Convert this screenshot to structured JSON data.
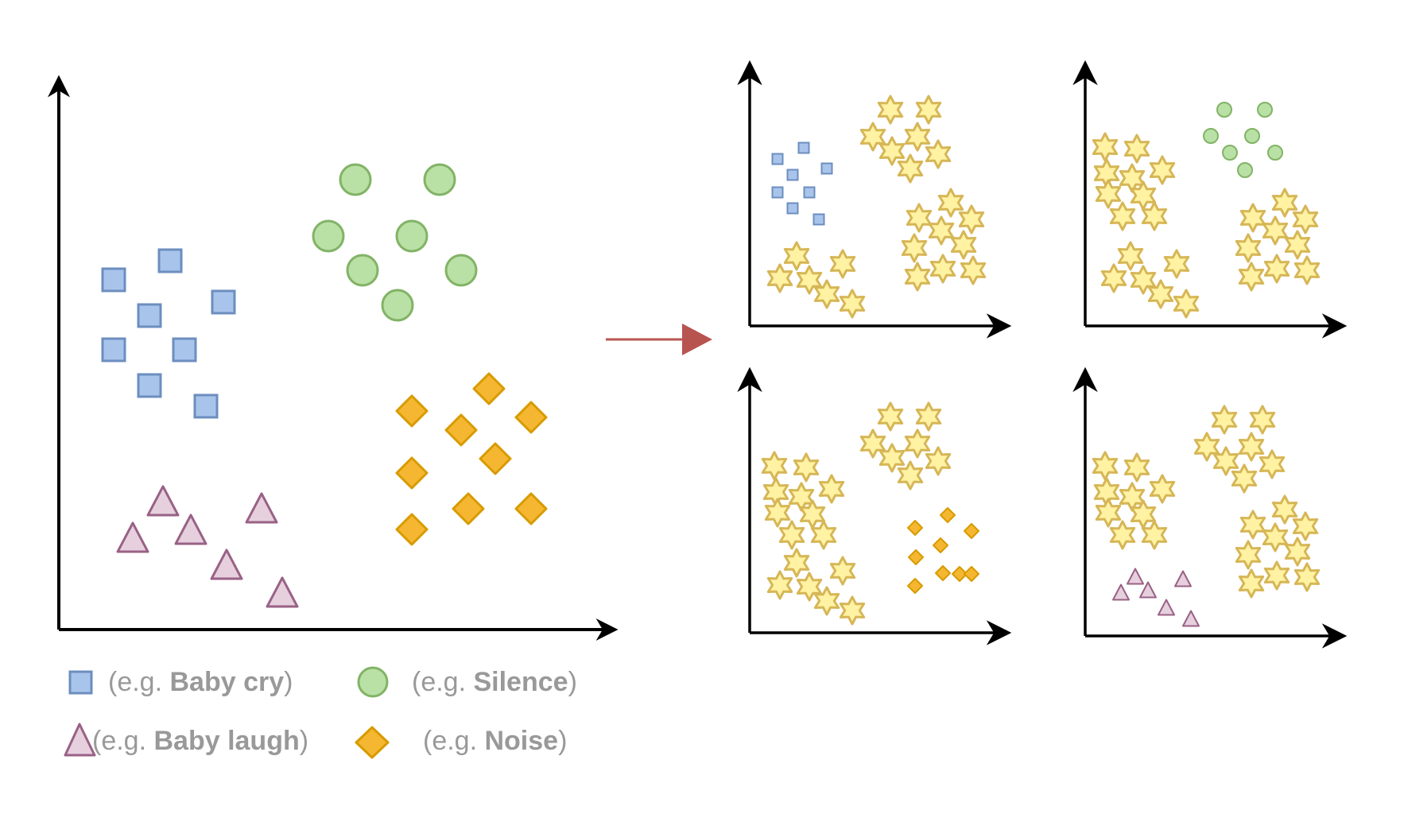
{
  "legend": [
    {
      "key": "square",
      "prefix": "(e.g. ",
      "name": "Baby cry",
      "suffix": ")"
    },
    {
      "key": "circle",
      "prefix": "(e.g. ",
      "name": "Silence",
      "suffix": ")"
    },
    {
      "key": "triangle",
      "prefix": "(e.g. ",
      "name": "Baby laugh",
      "suffix": ")"
    },
    {
      "key": "diamond",
      "prefix": "(e.g. ",
      "name": "Noise",
      "suffix": ")"
    }
  ],
  "colors": {
    "square": {
      "fill": "#A9C4EB",
      "stroke": "#6C8EBF"
    },
    "circle": {
      "fill": "#B9E0A5",
      "stroke": "#82B366"
    },
    "triangle": {
      "fill": "#E6D0DE",
      "stroke": "#996185"
    },
    "diamond": {
      "fill": "#F5B731",
      "stroke": "#D79B00"
    },
    "star": {
      "fill": "#FFF2A3",
      "stroke": "#D6B656"
    },
    "axis": "#000000",
    "arrow": "#B85450",
    "legend_text": "#999999"
  }
}
